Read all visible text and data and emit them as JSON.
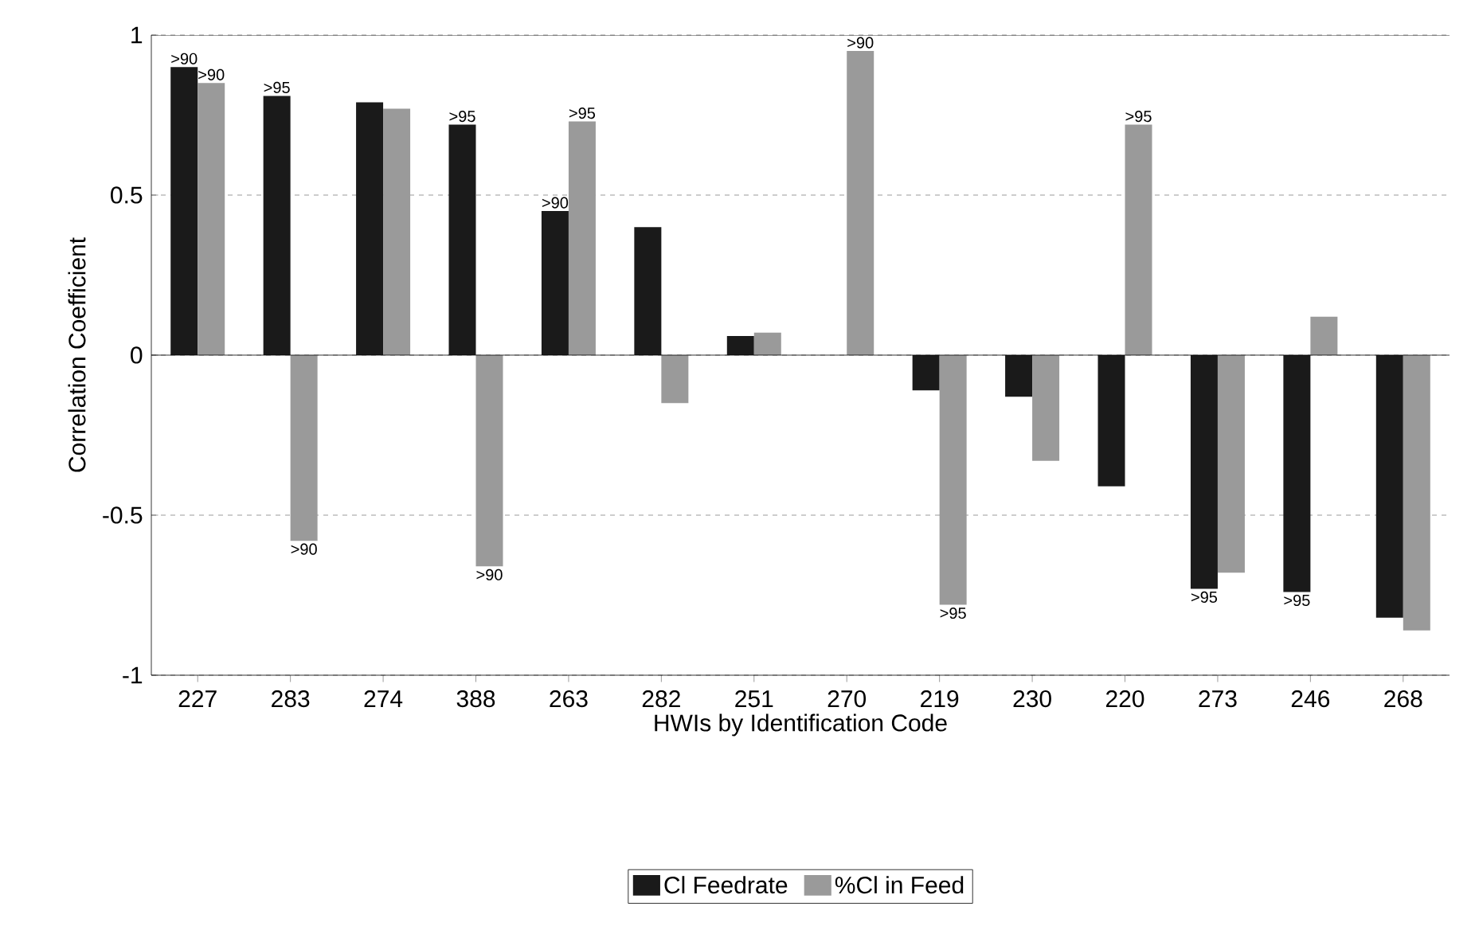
{
  "chart_data": {
    "type": "bar",
    "xlabel": "HWIs by Identification Code",
    "ylabel": "Correlation Coefficient",
    "categories": [
      "227",
      "283",
      "274",
      "388",
      "263",
      "282",
      "251",
      "270",
      "219",
      "230",
      "220",
      "273",
      "246",
      "268"
    ],
    "series": [
      {
        "name": "Cl Feedrate",
        "color": "#1a1a1a",
        "values": [
          0.9,
          0.81,
          0.79,
          0.72,
          0.45,
          0.4,
          0.06,
          null,
          -0.11,
          -0.13,
          -0.41,
          -0.73,
          -0.74,
          -0.82
        ]
      },
      {
        "name": "%Cl in Feed",
        "color": "#9a9a9a",
        "values": [
          0.85,
          -0.58,
          0.77,
          -0.66,
          0.73,
          -0.15,
          0.07,
          0.95,
          -0.78,
          -0.33,
          0.72,
          -0.68,
          0.12,
          -0.86
        ]
      }
    ],
    "ylim": [
      -1,
      1
    ],
    "yticks": [
      -1,
      -0.5,
      0,
      0.5,
      1
    ],
    "grid": "y",
    "legend": "bottom",
    "annotations": [
      {
        "text": ">90",
        "x": "227",
        "y": 0.9
      },
      {
        "text": ">90",
        "x": "227",
        "y": 0.85
      },
      {
        "text": ">95",
        "x": "283",
        "y": 0.81
      },
      {
        "text": ">90",
        "x": "283",
        "y": -0.58
      },
      {
        "text": ">95",
        "x": "388",
        "y": 0.72
      },
      {
        "text": ">90",
        "x": "388",
        "y": -0.66
      },
      {
        "text": ">90",
        "x": "263",
        "y": 0.45
      },
      {
        "text": ">95",
        "x": "263",
        "y": 0.73
      },
      {
        "text": ">90",
        "x": "270",
        "y": 0.95
      },
      {
        "text": ">95",
        "x": "219",
        "y": -0.78
      },
      {
        "text": ">95",
        "x": "220",
        "y": 0.72
      },
      {
        "text": ">95",
        "x": "273",
        "y": -0.73
      },
      {
        "text": ">95",
        "x": "246",
        "y": -0.74
      }
    ]
  }
}
